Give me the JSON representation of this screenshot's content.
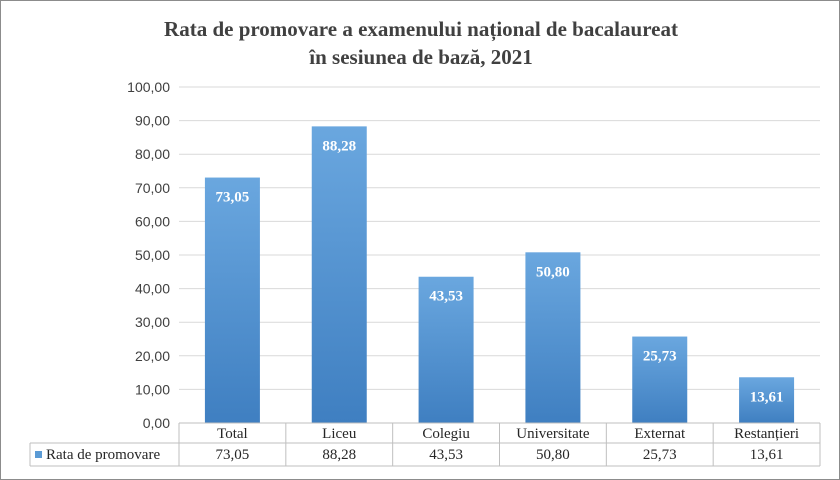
{
  "chart_data": {
    "type": "bar",
    "title_line1": "Rata de promovare  a examenului național de bacalaureat",
    "title_line2": "în sesiunea de bază, 2021",
    "categories": [
      "Total",
      "Liceu",
      "Colegiu",
      "Universitate",
      "Externat",
      "Restanțieri"
    ],
    "series": [
      {
        "name": "Rata de promovare",
        "values": [
          73.05,
          88.28,
          43.53,
          50.8,
          25.73,
          13.61
        ],
        "labels": [
          "73,05",
          "88,28",
          "43,53",
          "50,80",
          "25,73",
          "13,61"
        ]
      }
    ],
    "yticks": [
      "0,00",
      "10,00",
      "20,00",
      "30,00",
      "40,00",
      "50,00",
      "60,00",
      "70,00",
      "80,00",
      "90,00",
      "100,00"
    ],
    "ylim": [
      0,
      100
    ],
    "grid": true,
    "legend": "data-table",
    "bar_color": "#5b9bd5"
  }
}
